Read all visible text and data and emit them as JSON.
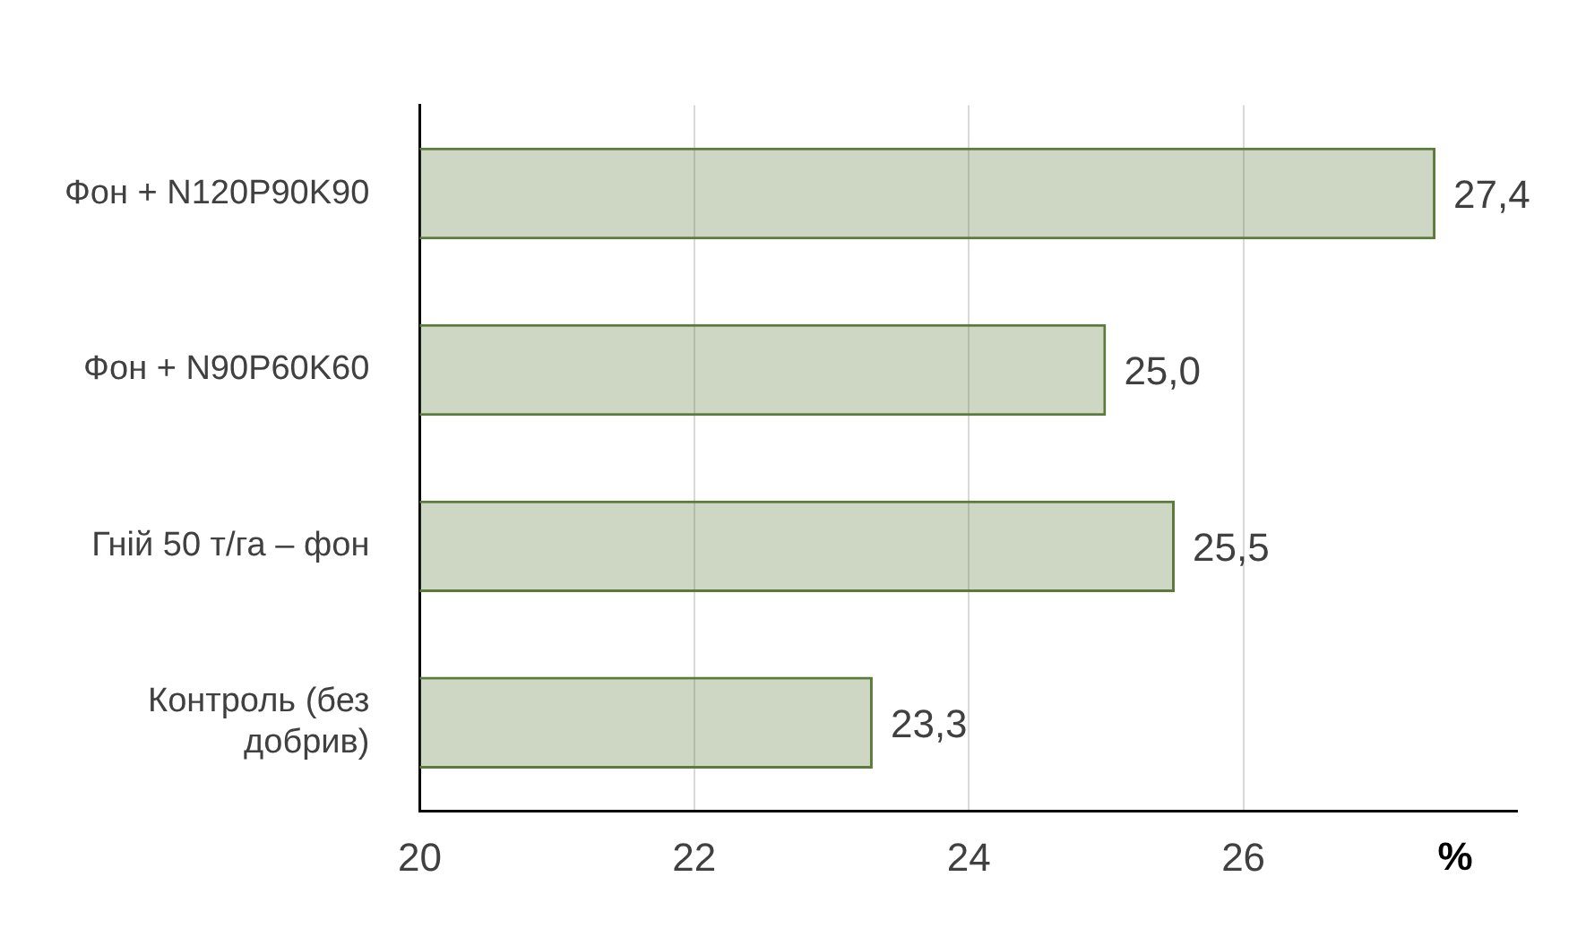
{
  "chart_data": {
    "type": "bar",
    "orientation": "horizontal",
    "categories": [
      "Фон + N120P90K90",
      "Фон + N90P60K60",
      "Гній 50 т/га – фон",
      "Контроль (без добрив)"
    ],
    "values": [
      27.4,
      25.0,
      25.5,
      23.3
    ],
    "value_labels": [
      "27,4",
      "25,0",
      "25,5",
      "23,3"
    ],
    "color": "#5b7a3c",
    "xlim": [
      20,
      28
    ],
    "xticks": [
      20,
      22,
      24,
      26
    ],
    "xlabel": "%",
    "grid": "x",
    "legend": false
  }
}
